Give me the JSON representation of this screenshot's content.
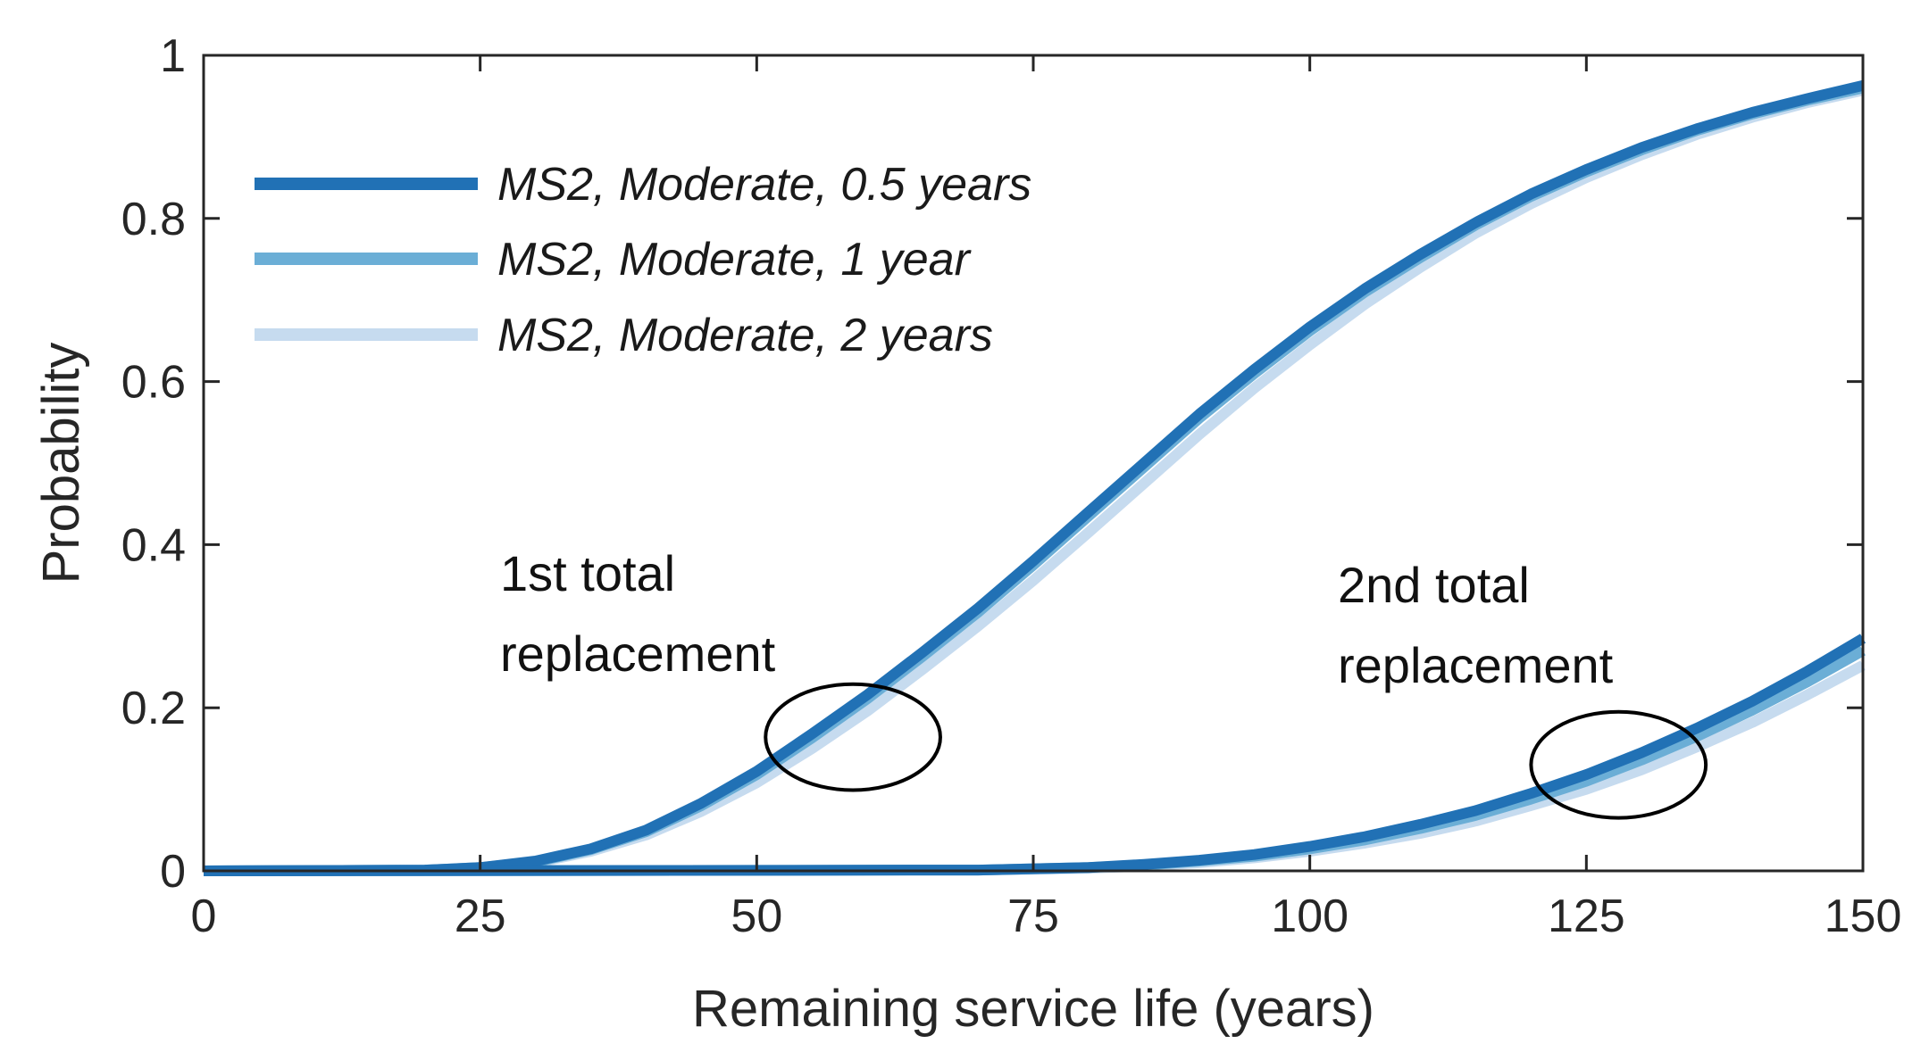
{
  "chart_data": {
    "type": "line",
    "title": "",
    "xlabel": "Remaining service life (years)",
    "ylabel": "Probability",
    "xlim": [
      0,
      150
    ],
    "ylim": [
      0,
      1
    ],
    "x_ticks": [
      "0",
      "25",
      "50",
      "75",
      "100",
      "125",
      "150"
    ],
    "y_ticks": [
      "0",
      "0.2",
      "0.4",
      "0.6",
      "0.8",
      "1"
    ],
    "x_tick_values": [
      0,
      25,
      50,
      75,
      100,
      125,
      150
    ],
    "y_tick_values": [
      0,
      0.2,
      0.4,
      0.6,
      0.8,
      1
    ],
    "grid": false,
    "legend_position": "top-left",
    "series": [
      {
        "name": "MS2, Moderate, 0.5 years",
        "color": "#2171b5",
        "curves": [
          {
            "label": "1st total replacement",
            "x": [
              0,
              20,
              25,
              30,
              35,
              40,
              45,
              50,
              55,
              60,
              65,
              70,
              75,
              80,
              85,
              90,
              95,
              100,
              105,
              110,
              115,
              120,
              125,
              130,
              135,
              140,
              145,
              150
            ],
            "y": [
              0,
              0.001,
              0.004,
              0.012,
              0.027,
              0.05,
              0.083,
              0.122,
              0.168,
              0.216,
              0.268,
              0.322,
              0.38,
              0.44,
              0.5,
              0.56,
              0.615,
              0.667,
              0.714,
              0.756,
              0.795,
              0.83,
              0.86,
              0.887,
              0.91,
              0.93,
              0.947,
              0.963
            ]
          },
          {
            "label": "2nd total replacement",
            "x": [
              0,
              70,
              80,
              85,
              90,
              95,
              100,
              105,
              110,
              115,
              120,
              125,
              130,
              135,
              140,
              145,
              150
            ],
            "y": [
              0,
              0.001,
              0.004,
              0.008,
              0.013,
              0.02,
              0.03,
              0.042,
              0.057,
              0.074,
              0.095,
              0.118,
              0.145,
              0.175,
              0.208,
              0.245,
              0.285
            ]
          }
        ]
      },
      {
        "name": "MS2, Moderate, 1 year",
        "color": "#6baed6",
        "curves": [
          {
            "label": "1st total replacement",
            "x": [
              0,
              20,
              25,
              30,
              35,
              40,
              45,
              50,
              55,
              60,
              65,
              70,
              75,
              80,
              85,
              90,
              95,
              100,
              105,
              110,
              115,
              120,
              125,
              130,
              135,
              140,
              145,
              150
            ],
            "y": [
              0,
              0.001,
              0.004,
              0.011,
              0.026,
              0.048,
              0.08,
              0.118,
              0.163,
              0.211,
              0.263,
              0.317,
              0.375,
              0.435,
              0.495,
              0.555,
              0.61,
              0.662,
              0.71,
              0.752,
              0.792,
              0.827,
              0.857,
              0.884,
              0.908,
              0.928,
              0.945,
              0.96
            ]
          },
          {
            "label": "2nd total replacement",
            "x": [
              0,
              70,
              80,
              85,
              90,
              95,
              100,
              105,
              110,
              115,
              120,
              125,
              130,
              135,
              140,
              145,
              150
            ],
            "y": [
              0,
              0.001,
              0.004,
              0.007,
              0.012,
              0.018,
              0.027,
              0.038,
              0.052,
              0.068,
              0.088,
              0.11,
              0.136,
              0.165,
              0.197,
              0.232,
              0.27
            ]
          }
        ]
      },
      {
        "name": "MS2, Moderate, 2 years",
        "color": "#c6dbef",
        "curves": [
          {
            "label": "1st total replacement",
            "x": [
              0,
              20,
              25,
              30,
              35,
              40,
              45,
              50,
              55,
              60,
              65,
              70,
              75,
              80,
              85,
              90,
              95,
              100,
              105,
              110,
              115,
              120,
              125,
              130,
              135,
              140,
              145,
              150
            ],
            "y": [
              0,
              0.001,
              0.003,
              0.01,
              0.024,
              0.044,
              0.073,
              0.108,
              0.15,
              0.196,
              0.247,
              0.3,
              0.356,
              0.415,
              0.475,
              0.535,
              0.592,
              0.645,
              0.695,
              0.74,
              0.782,
              0.818,
              0.85,
              0.878,
              0.903,
              0.924,
              0.942,
              0.957
            ]
          },
          {
            "label": "2nd total replacement",
            "x": [
              0,
              70,
              80,
              85,
              90,
              95,
              100,
              105,
              110,
              115,
              120,
              125,
              130,
              135,
              140,
              145,
              150
            ],
            "y": [
              0,
              0.001,
              0.003,
              0.006,
              0.01,
              0.016,
              0.024,
              0.034,
              0.046,
              0.061,
              0.08,
              0.1,
              0.124,
              0.152,
              0.182,
              0.216,
              0.252
            ]
          }
        ]
      }
    ],
    "annotations": [
      {
        "lines": [
          "1st total",
          "replacement"
        ],
        "circle_center": [
          58.7,
          0.164
        ],
        "circle_radius": [
          7.9,
          0.065
        ]
      },
      {
        "lines": [
          "2nd total",
          "replacement"
        ],
        "circle_center": [
          127.9,
          0.13
        ],
        "circle_radius": [
          7.9,
          0.065
        ]
      }
    ]
  }
}
